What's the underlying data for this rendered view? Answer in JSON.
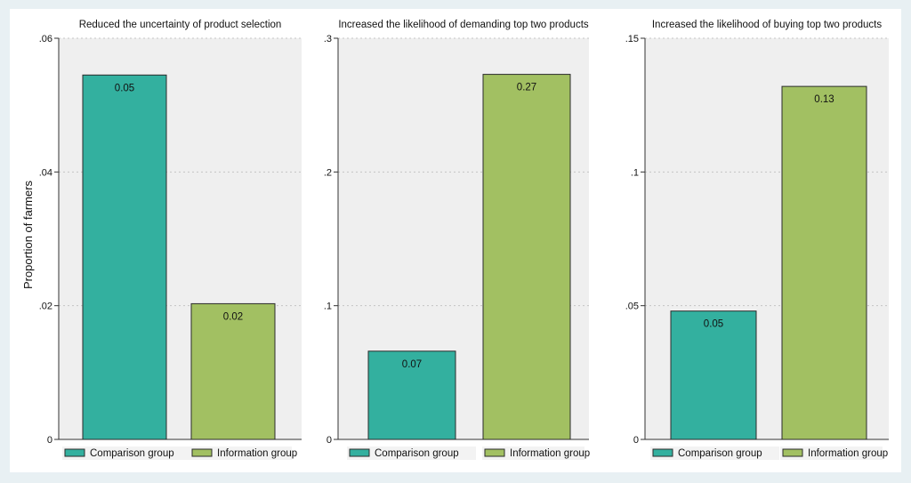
{
  "ylabel": "Proportion of farmers",
  "legend_items": [
    "Comparison group",
    "Information group"
  ],
  "colors": {
    "comparison": "#33b09f",
    "information": "#a2c062",
    "plot_bg": "#efefef",
    "grid": "#c4c4c4"
  },
  "chart_data": [
    {
      "type": "bar",
      "title": "Reduced the uncertainty of product selection",
      "categories": [
        "Comparison group",
        "Information group"
      ],
      "values": [
        0.0545,
        0.0203
      ],
      "data_labels": [
        "0.05",
        "0.02"
      ],
      "yticks": [
        ".06",
        ".04",
        ".02",
        "0"
      ],
      "ylim": [
        0,
        0.06
      ],
      "ylabel": "Proportion of farmers",
      "grid": true,
      "legend": "bottom"
    },
    {
      "type": "bar",
      "title": "Increased the likelihood of demanding top two products",
      "categories": [
        "Comparison group",
        "Information group"
      ],
      "values": [
        0.066,
        0.273
      ],
      "data_labels": [
        "0.07",
        "0.27"
      ],
      "yticks": [
        ".3",
        ".2",
        ".1",
        "0"
      ],
      "ylim": [
        0,
        0.3
      ],
      "grid": true,
      "legend": "bottom"
    },
    {
      "type": "bar",
      "title": "Increased the likelihood of buying top two products",
      "categories": [
        "Comparison group",
        "Information group"
      ],
      "values": [
        0.048,
        0.132
      ],
      "data_labels": [
        "0.05",
        "0.13"
      ],
      "yticks": [
        ".15",
        ".1",
        ".05",
        "0"
      ],
      "ylim": [
        0,
        0.15
      ],
      "grid": true,
      "legend": "bottom"
    }
  ]
}
